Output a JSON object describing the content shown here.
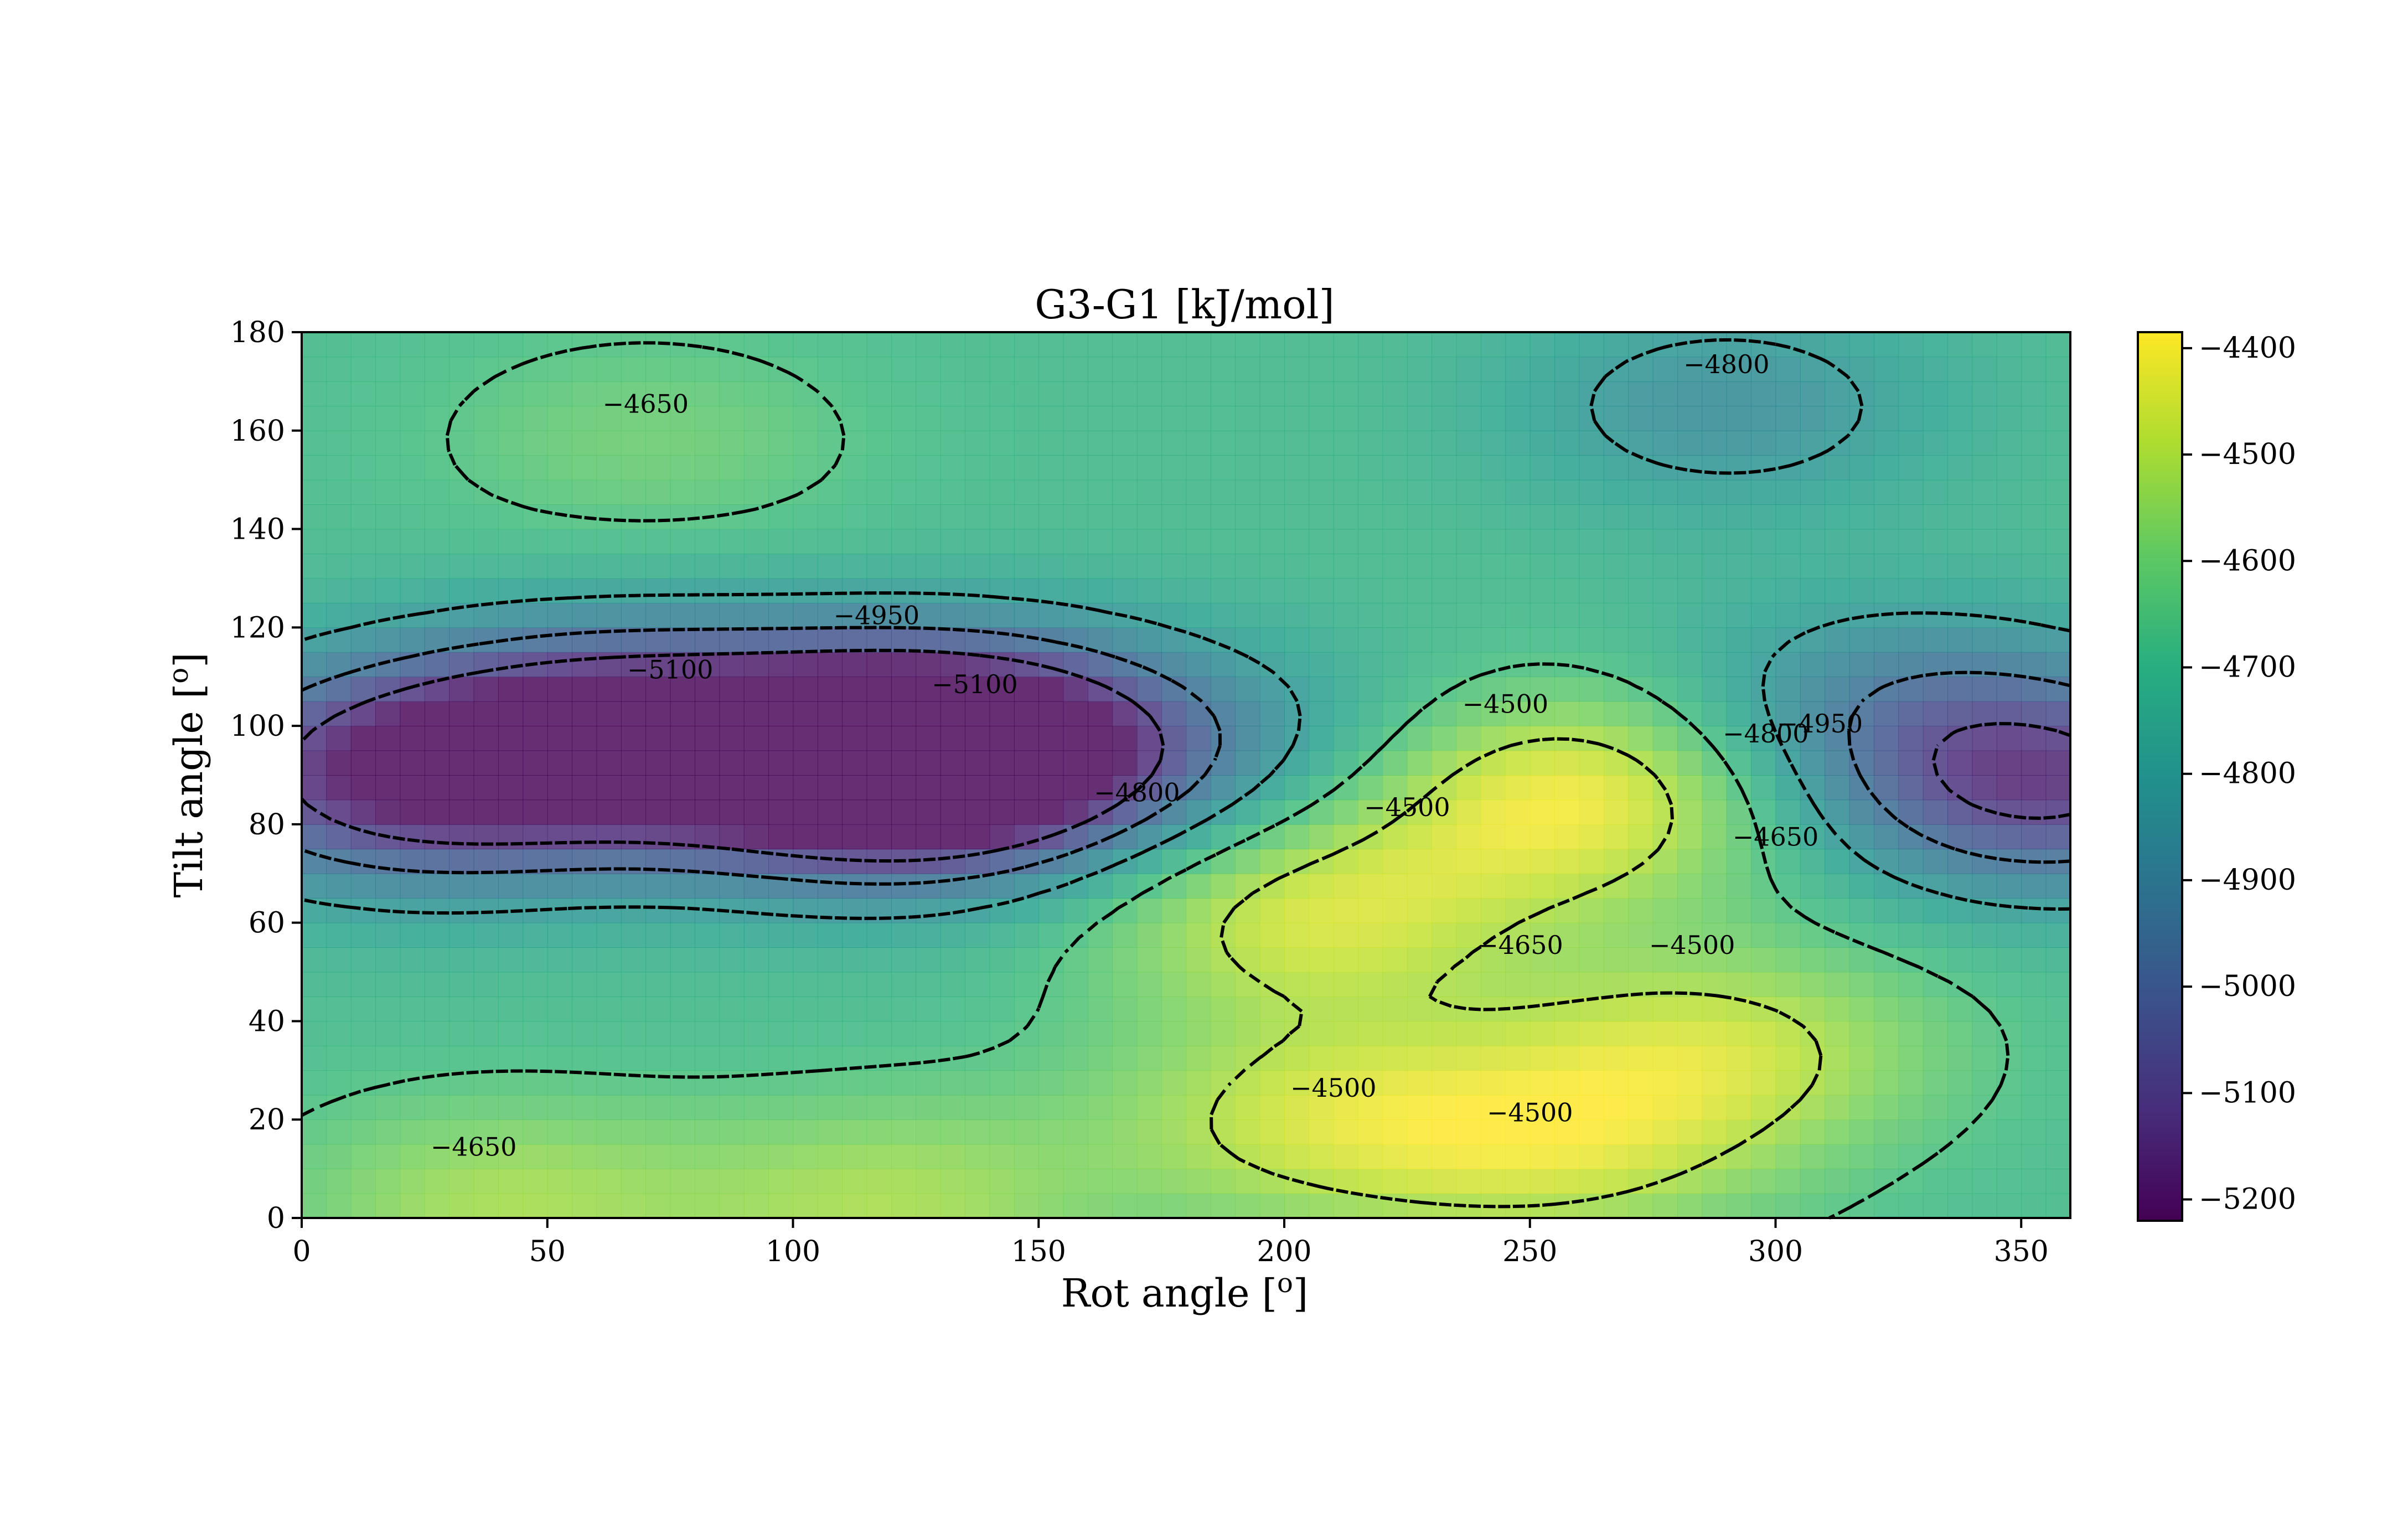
{
  "chart_data": {
    "type": "heatmap",
    "title": "G3-G1 [kJ/mol]",
    "xlabel": "Rot angle [",
    "xlabel_sup": "o",
    "xlabel_end": "]",
    "ylabel": "Tilt angle [",
    "ylabel_sup": "o",
    "ylabel_end": "]",
    "xlim": [
      0,
      360
    ],
    "ylim": [
      0,
      180
    ],
    "x_ticks": [
      0,
      50,
      100,
      150,
      200,
      250,
      300,
      350
    ],
    "y_ticks": [
      0,
      20,
      40,
      60,
      80,
      100,
      120,
      140,
      160,
      180
    ],
    "colorbar": {
      "colormap": "viridis",
      "range": [
        -5220,
        -4385
      ],
      "ticks": [
        -4400,
        -4500,
        -4600,
        -4700,
        -4800,
        -4900,
        -5000,
        -5100,
        -5200
      ],
      "tick_labels": [
        "−4400",
        "−4500",
        "−4600",
        "−4700",
        "−4800",
        "−4900",
        "−5000",
        "−5100",
        "−5200"
      ]
    },
    "contour_levels": [
      -5100,
      -4950,
      -4800,
      -4650,
      -4500
    ],
    "contour_style": "dashed black",
    "contour_labels": [
      {
        "text": "−4650",
        "x": 70,
        "y": 165
      },
      {
        "text": "−4800",
        "x": 290,
        "y": 173
      },
      {
        "text": "−4950",
        "x": 117,
        "y": 122
      },
      {
        "text": "−5100",
        "x": 75,
        "y": 111
      },
      {
        "text": "−5100",
        "x": 137,
        "y": 108
      },
      {
        "text": "−4500",
        "x": 245,
        "y": 104
      },
      {
        "text": "−4800",
        "x": 170,
        "y": 86
      },
      {
        "text": "−4500",
        "x": 225,
        "y": 83
      },
      {
        "text": "−4800",
        "x": 298,
        "y": 98
      },
      {
        "text": "−4950",
        "x": 309,
        "y": 100
      },
      {
        "text": "−4650",
        "x": 300,
        "y": 77
      },
      {
        "text": "−4650",
        "x": 248,
        "y": 55
      },
      {
        "text": "−4500",
        "x": 283,
        "y": 55
      },
      {
        "text": "−4500",
        "x": 210,
        "y": 26
      },
      {
        "text": "−4500",
        "x": 250,
        "y": 21
      },
      {
        "text": "−4650",
        "x": 35,
        "y": 14
      }
    ],
    "basins": [
      {
        "x": 115,
        "y": 92,
        "value": -5200
      },
      {
        "x": 140,
        "y": 95,
        "value": -5215
      },
      {
        "x": 65,
        "y": 98,
        "value": -5180
      },
      {
        "x": 20,
        "y": 90,
        "value": -5160
      },
      {
        "x": 355,
        "y": 88,
        "value": -5110
      },
      {
        "x": 322,
        "y": 105,
        "value": -4860
      },
      {
        "x": 290,
        "y": 165,
        "value": -4850
      },
      {
        "x": 200,
        "y": 96,
        "value": -4780
      }
    ],
    "peaks": [
      {
        "x": 258,
        "y": 86,
        "value": -4395
      },
      {
        "x": 205,
        "y": 62,
        "value": -4455
      },
      {
        "x": 290,
        "y": 35,
        "value": -4490
      },
      {
        "x": 205,
        "y": 20,
        "value": -4500
      },
      {
        "x": 255,
        "y": 15,
        "value": -4490
      },
      {
        "x": 40,
        "y": 3,
        "value": -4520
      },
      {
        "x": 120,
        "y": 3,
        "value": -4520
      },
      {
        "x": 70,
        "y": 158,
        "value": -4600
      }
    ],
    "base_value": -4690
  }
}
